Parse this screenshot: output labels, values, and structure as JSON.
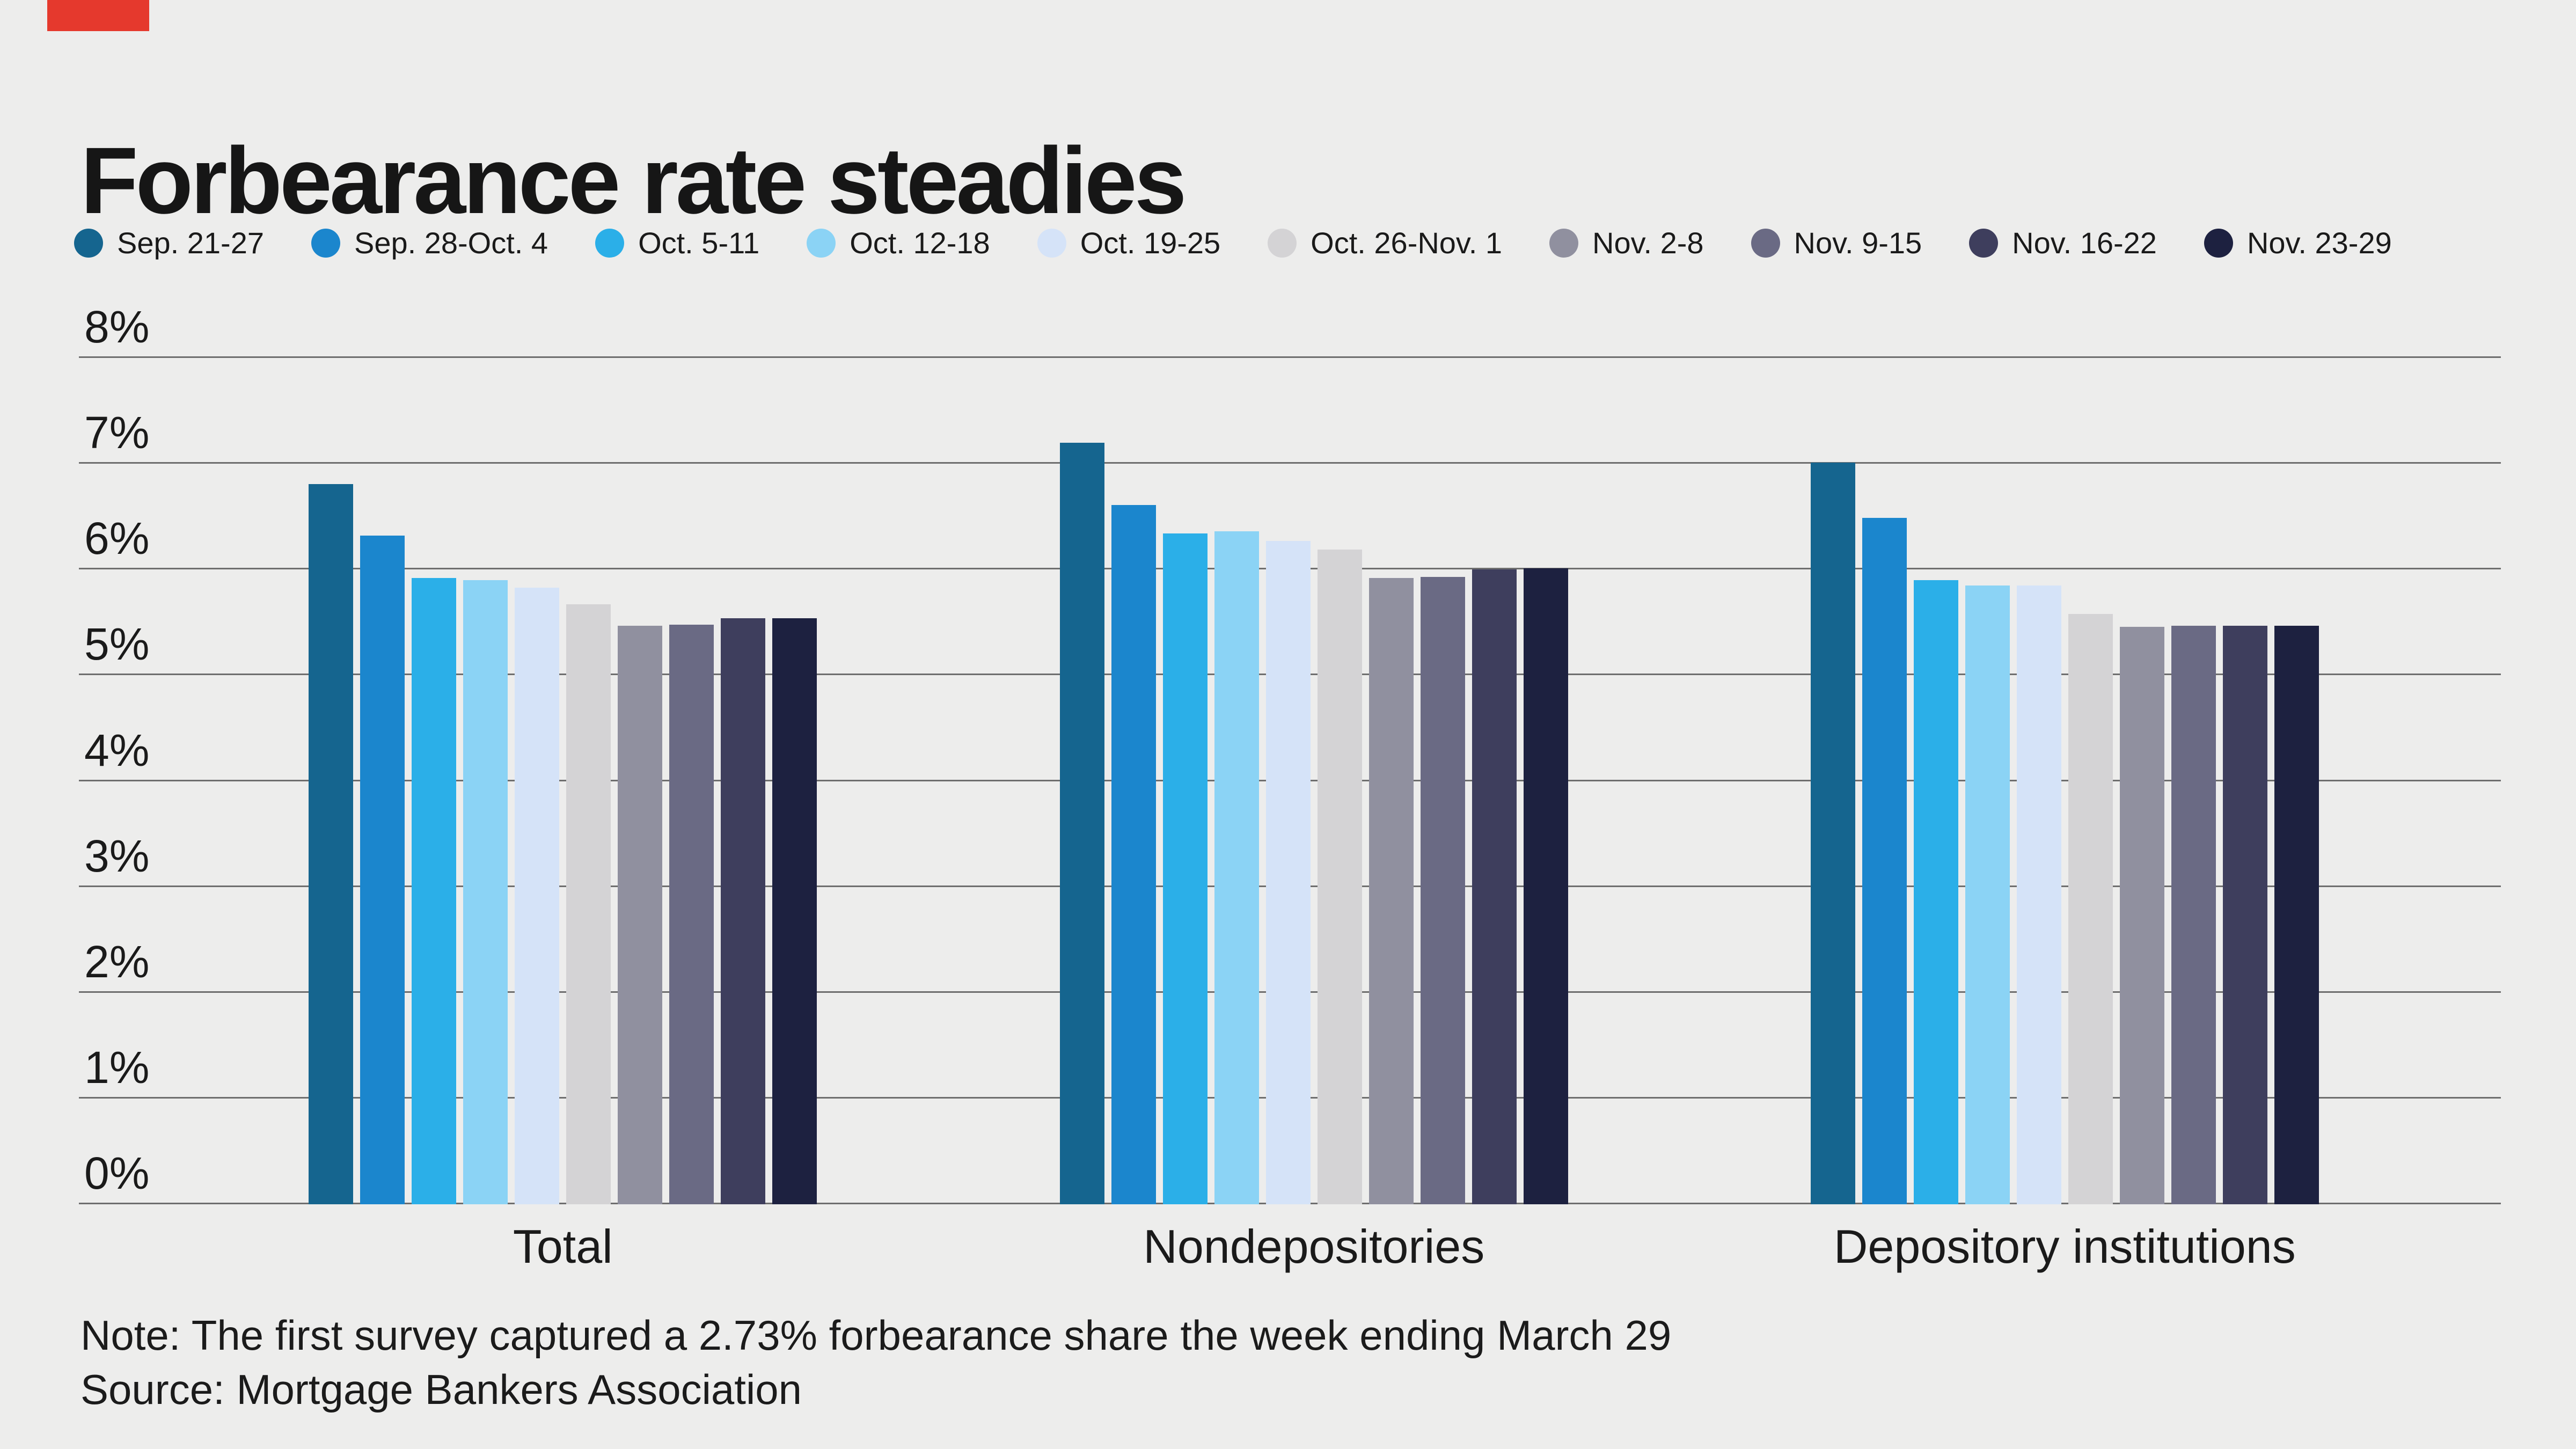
{
  "accent_color": "#e5392d",
  "background_color": "#ededec",
  "title": "Forbearance rate steadies",
  "note": "Note: The first survey captured a 2.73% forbearance share the week ending March 29",
  "source": "Source: Mortgage Bankers Association",
  "chart_data": {
    "type": "bar",
    "title": "Forbearance rate steadies",
    "categories": [
      "Total",
      "Nondepositories",
      "Depository institutions"
    ],
    "series": [
      {
        "name": "Sep. 21-27",
        "color": "#15658f",
        "values": [
          6.81,
          7.2,
          7.01
        ]
      },
      {
        "name": "Sep. 28-Oct. 4",
        "color": "#1b86cd",
        "values": [
          6.32,
          6.61,
          6.49
        ]
      },
      {
        "name": "Oct. 5-11",
        "color": "#2bafe8",
        "values": [
          5.92,
          6.34,
          5.9
        ]
      },
      {
        "name": "Oct. 12-18",
        "color": "#8bd3f5",
        "values": [
          5.9,
          6.36,
          5.85
        ]
      },
      {
        "name": "Oct. 19-25",
        "color": "#d5e3f8",
        "values": [
          5.83,
          6.27,
          5.85
        ]
      },
      {
        "name": "Oct. 26-Nov. 1",
        "color": "#d4d3d5",
        "values": [
          5.67,
          6.19,
          5.58
        ]
      },
      {
        "name": "Nov. 2-8",
        "color": "#90909f",
        "values": [
          5.47,
          5.92,
          5.46
        ]
      },
      {
        "name": "Nov. 9-15",
        "color": "#6a6a84",
        "values": [
          5.48,
          5.93,
          5.47
        ]
      },
      {
        "name": "Nov. 16-22",
        "color": "#3e3e5d",
        "values": [
          5.54,
          6.0,
          5.47
        ]
      },
      {
        "name": "Nov. 23-29",
        "color": "#1d2140",
        "values": [
          5.54,
          6.01,
          5.47
        ]
      }
    ],
    "ylim": [
      0,
      8
    ],
    "yticks": [
      0,
      1,
      2,
      3,
      4,
      5,
      6,
      7,
      8
    ],
    "ytick_suffix": "%",
    "grid": true,
    "legend_position": "top",
    "group_left_percents": [
      9.49,
      40.5,
      71.5
    ]
  }
}
